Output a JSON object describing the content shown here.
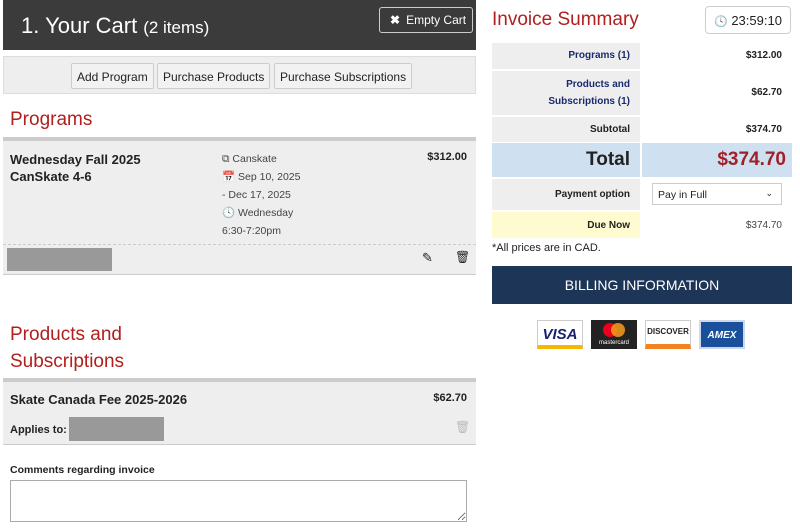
{
  "cart": {
    "title": "1. Your Cart",
    "count": "(2 items)",
    "empty_label": "Empty Cart",
    "buttons": [
      "Add Program",
      "Purchase Products",
      "Purchase Subscriptions"
    ]
  },
  "programs": {
    "heading": "Programs",
    "item": {
      "name_line1": "Wednesday Fall 2025",
      "name_line2": "CanSkate 4-6",
      "category": "Canskate",
      "date_start": "Sep 10, 2025",
      "date_end": "- Dec 17, 2025",
      "day": "Wednesday",
      "time": "6:30-7:20pm",
      "price": "$312.00"
    }
  },
  "products": {
    "heading_line1": "Products and",
    "heading_line2": "Subscriptions",
    "item": {
      "name": "Skate Canada Fee 2025-2026",
      "price": "$62.70",
      "applies_label": "Applies to:"
    }
  },
  "comments": {
    "label": "Comments regarding invoice",
    "value": ""
  },
  "invoice": {
    "heading": "Invoice Summary",
    "timer": "23:59:10",
    "programs_label": "Programs (1)",
    "programs_value": "$312.00",
    "products_label_1": "Products and",
    "products_label_2": "Subscriptions (1)",
    "products_value": "$62.70",
    "subtotal_label": "Subtotal",
    "subtotal_value": "$374.70",
    "total_label": "Total",
    "total_value": "$374.70",
    "payment_label": "Payment option",
    "payment_value": "Pay in Full",
    "due_label": "Due Now",
    "due_value": "$374.70",
    "note": "*All prices are in CAD.",
    "billing_label": "BILLING INFORMATION",
    "cards": [
      "VISA",
      "mastercard",
      "DISCOVER",
      "AMEX"
    ]
  },
  "colors": {
    "accent": "#b0201e",
    "billing": "#1d3557",
    "total_bg": "#cfe0f0",
    "due_bg": "#fffbd0"
  }
}
